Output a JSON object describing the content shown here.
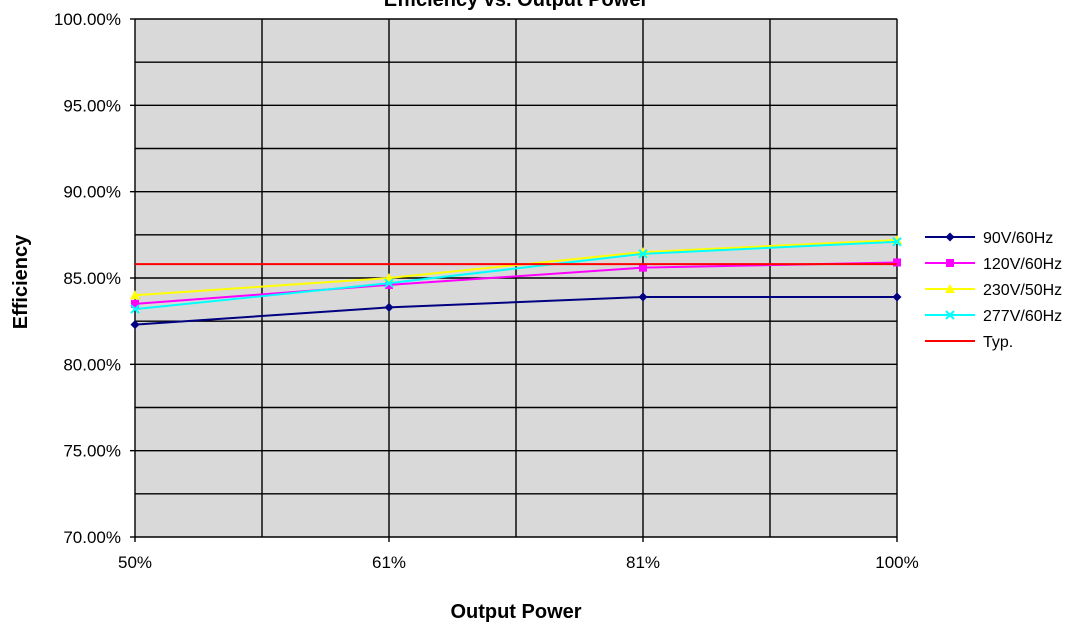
{
  "chart_data": {
    "type": "line",
    "title": "Efficiency vs. Output Power",
    "xlabel": "Output Power",
    "ylabel": "Efficiency",
    "categories": [
      "50%",
      "61%",
      "81%",
      "100%"
    ],
    "ylim": [
      0.7,
      1.0
    ],
    "yticks": [
      "70.00%",
      "75.00%",
      "80.00%",
      "85.00%",
      "90.00%",
      "95.00%",
      "100.00%"
    ],
    "grid": true,
    "legend_position": "right",
    "plot_background": "#d9d9d9",
    "series": [
      {
        "name": "90V/60Hz",
        "color": "#000080",
        "marker": "diamond",
        "values": [
          0.823,
          0.833,
          0.839,
          0.839
        ]
      },
      {
        "name": "120V/60Hz",
        "color": "#ff00ff",
        "marker": "square",
        "values": [
          0.835,
          0.846,
          0.856,
          0.859
        ]
      },
      {
        "name": "230V/50Hz",
        "color": "#ffff00",
        "marker": "triangle",
        "values": [
          0.84,
          0.85,
          0.865,
          0.872
        ]
      },
      {
        "name": "277V/60Hz",
        "color": "#00ffff",
        "marker": "x",
        "values": [
          0.832,
          0.847,
          0.864,
          0.871
        ]
      },
      {
        "name": "Typ.",
        "color": "#ff0000",
        "marker": "none",
        "values": [
          0.858,
          0.858,
          0.858,
          0.858
        ]
      }
    ]
  }
}
